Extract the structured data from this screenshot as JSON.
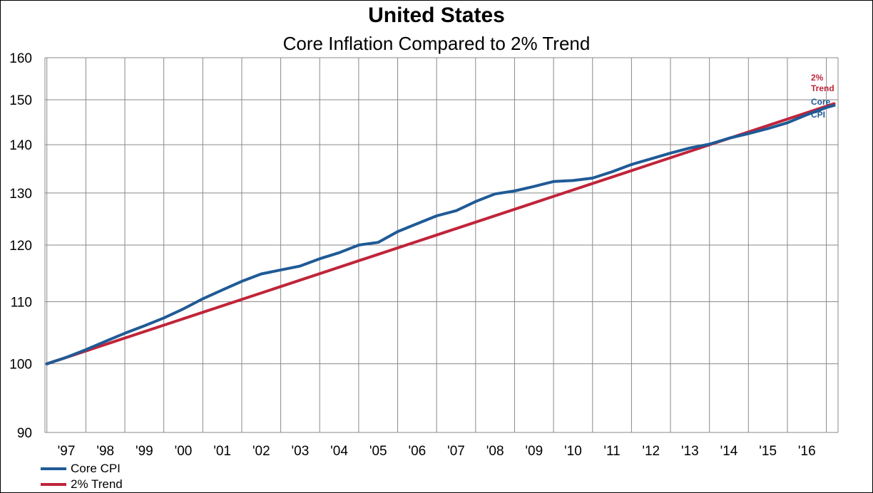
{
  "title": "United States",
  "subtitle": "Core Inflation Compared to 2% Trend",
  "legend": [
    {
      "label": "Core CPI",
      "color": "#1f5a96"
    },
    {
      "label": "2% Trend",
      "color": "#c0243a"
    }
  ],
  "end_labels": {
    "trend": [
      "2%",
      "Trend"
    ],
    "core": [
      "Core",
      "CPI"
    ]
  },
  "chart_data": {
    "type": "line",
    "title": "United States",
    "subtitle": "Core Inflation Compared to 2% Trend",
    "y_scale": "log",
    "ylim": [
      90,
      160
    ],
    "y_ticks": [
      90,
      100,
      110,
      120,
      130,
      140,
      150,
      160
    ],
    "x_range": [
      1996.95,
      2017.3
    ],
    "x_ticks": [
      1997.5,
      1998.5,
      1999.5,
      2000.5,
      2001.5,
      2002.5,
      2003.5,
      2004.5,
      2005.5,
      2006.5,
      2007.5,
      2008.5,
      2009.5,
      2010.5,
      2011.5,
      2012.5,
      2013.5,
      2014.5,
      2015.5,
      2016.5
    ],
    "x_tick_labels": [
      "'97",
      "'98",
      "'99",
      "'00",
      "'01",
      "'02",
      "'03",
      "'04",
      "'05",
      "'06",
      "'07",
      "'08",
      "'09",
      "'10",
      "'11",
      "'12",
      "'13",
      "'14",
      "'15",
      "'16"
    ],
    "grid": true,
    "legend_position": "bottom-left",
    "series": [
      {
        "name": "Core CPI",
        "color": "#1f5a96",
        "x": [
          1997.0,
          1997.5,
          1998.0,
          1998.5,
          1999.0,
          1999.5,
          2000.0,
          2000.5,
          2001.0,
          2001.5,
          2002.0,
          2002.5,
          2003.0,
          2003.5,
          2004.0,
          2004.5,
          2005.0,
          2005.5,
          2006.0,
          2006.5,
          2007.0,
          2007.5,
          2008.0,
          2008.5,
          2009.0,
          2009.5,
          2010.0,
          2010.5,
          2011.0,
          2011.5,
          2012.0,
          2012.5,
          2013.0,
          2013.5,
          2014.0,
          2014.5,
          2015.0,
          2015.5,
          2016.0,
          2016.5,
          2017.0,
          2017.2
        ],
        "values": [
          100.0,
          101.0,
          102.2,
          103.5,
          104.8,
          106.0,
          107.3,
          108.8,
          110.5,
          112.0,
          113.5,
          114.8,
          115.5,
          116.2,
          117.5,
          118.6,
          120.0,
          120.5,
          122.5,
          124.0,
          125.5,
          126.5,
          128.3,
          129.8,
          130.4,
          131.3,
          132.3,
          132.5,
          133.0,
          134.3,
          135.8,
          137.0,
          138.2,
          139.3,
          140.1,
          141.4,
          142.4,
          143.5,
          144.8,
          146.6,
          148.2,
          148.7
        ]
      },
      {
        "name": "2% Trend",
        "color": "#c0243a",
        "x": [
          1997.0,
          2017.2
        ],
        "values": [
          100.0,
          149.1
        ]
      }
    ]
  }
}
